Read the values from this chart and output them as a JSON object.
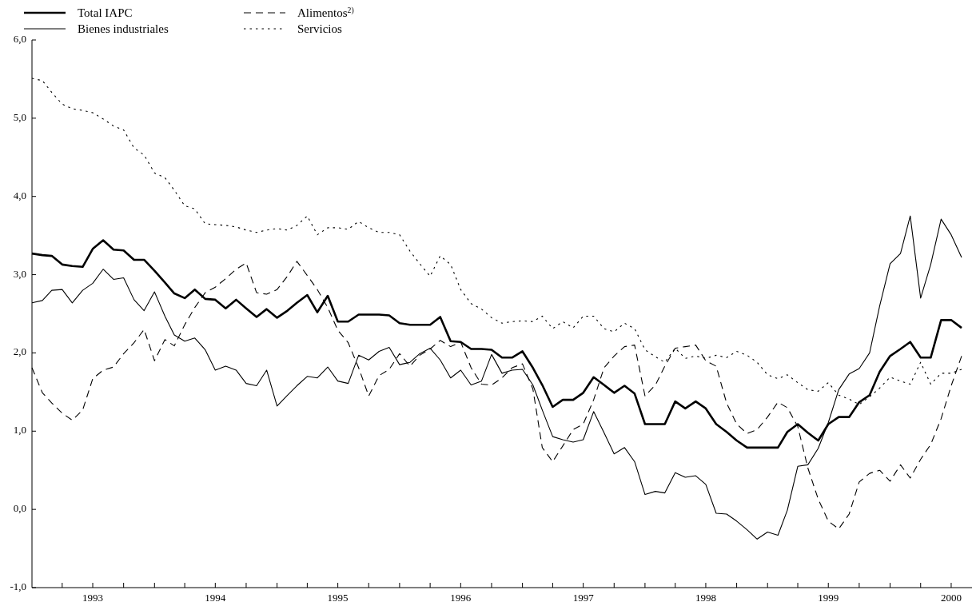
{
  "chart_data": {
    "type": "line",
    "x": [
      "1993-01",
      "1993-02",
      "1993-03",
      "1993-04",
      "1993-05",
      "1993-06",
      "1993-07",
      "1993-08",
      "1993-09",
      "1993-10",
      "1993-11",
      "1993-12",
      "1994-01",
      "1994-02",
      "1994-03",
      "1994-04",
      "1994-05",
      "1994-06",
      "1994-07",
      "1994-08",
      "1994-09",
      "1994-10",
      "1994-11",
      "1994-12",
      "1995-01",
      "1995-02",
      "1995-03",
      "1995-04",
      "1995-05",
      "1995-06",
      "1995-07",
      "1995-08",
      "1995-09",
      "1995-10",
      "1995-11",
      "1995-12",
      "1996-01",
      "1996-02",
      "1996-03",
      "1996-04",
      "1996-05",
      "1996-06",
      "1996-07",
      "1996-08",
      "1996-09",
      "1996-10",
      "1996-11",
      "1996-12",
      "1997-01",
      "1997-02",
      "1997-03",
      "1997-04",
      "1997-05",
      "1997-06",
      "1997-07",
      "1997-08",
      "1997-09",
      "1997-10",
      "1997-11",
      "1997-12",
      "1998-01",
      "1998-02",
      "1998-03",
      "1998-04",
      "1998-05",
      "1998-06",
      "1998-07",
      "1998-08",
      "1998-09",
      "1998-10",
      "1998-11",
      "1998-12",
      "1999-01",
      "1999-02",
      "1999-03",
      "1999-04",
      "1999-05",
      "1999-06",
      "1999-07",
      "1999-08",
      "1999-09",
      "1999-10",
      "1999-11",
      "1999-12",
      "2000-01",
      "2000-02",
      "2000-03",
      "2000-04",
      "2000-05",
      "2000-06",
      "2000-07",
      "2000-08"
    ],
    "series": [
      {
        "name": "Total IAPC",
        "color": "#000000",
        "line_style": "solid",
        "values": [
          3.27,
          3.25,
          3.24,
          3.13,
          3.11,
          3.1,
          3.33,
          3.44,
          3.32,
          3.31,
          3.19,
          3.19,
          3.05,
          2.9,
          2.76,
          2.7,
          2.81,
          2.69,
          2.68,
          2.57,
          2.68,
          2.57,
          2.46,
          2.56,
          2.45,
          2.54,
          2.64,
          2.74,
          2.52,
          2.73,
          2.4,
          2.4,
          2.49,
          2.49,
          2.49,
          2.48,
          2.38,
          2.36,
          2.36,
          2.36,
          2.46,
          2.15,
          2.14,
          2.05,
          2.05,
          2.04,
          1.94,
          1.94,
          2.02,
          1.81,
          1.59,
          1.31,
          1.4,
          1.4,
          1.49,
          1.69,
          1.59,
          1.49,
          1.58,
          1.48,
          1.09,
          1.09,
          1.09,
          1.38,
          1.29,
          1.38,
          1.29,
          1.09,
          0.99,
          0.88,
          0.79,
          0.79,
          0.79,
          0.79,
          0.99,
          1.09,
          0.98,
          0.88,
          1.09,
          1.18,
          1.18,
          1.37,
          1.46,
          1.76,
          1.96,
          2.05,
          2.14,
          1.94,
          1.94,
          2.42,
          2.42,
          2.32
        ]
      },
      {
        "name": "Bienes industriales",
        "color": "#000000",
        "line_style": "solid",
        "values": [
          2.64,
          2.67,
          2.8,
          2.81,
          2.64,
          2.8,
          2.89,
          3.07,
          2.94,
          2.96,
          2.68,
          2.54,
          2.78,
          2.47,
          2.23,
          2.15,
          2.19,
          2.04,
          1.78,
          1.83,
          1.78,
          1.61,
          1.58,
          1.78,
          1.32,
          1.46,
          1.58,
          1.7,
          1.68,
          1.82,
          1.64,
          1.61,
          1.97,
          1.91,
          2.02,
          2.07,
          1.85,
          1.88,
          1.99,
          2.06,
          1.91,
          1.68,
          1.78,
          1.59,
          1.64,
          1.98,
          1.74,
          1.78,
          1.79,
          1.59,
          1.27,
          0.93,
          0.89,
          0.86,
          0.89,
          1.25,
          0.98,
          0.71,
          0.79,
          0.61,
          0.19,
          0.23,
          0.21,
          0.47,
          0.41,
          0.43,
          0.32,
          -0.05,
          -0.06,
          -0.15,
          -0.26,
          -0.38,
          -0.29,
          -0.33,
          -0.01,
          0.55,
          0.57,
          0.78,
          1.11,
          1.53,
          1.73,
          1.8,
          2.0,
          2.6,
          3.14,
          3.27,
          3.75,
          2.7,
          3.13,
          3.71,
          3.51,
          3.22
        ]
      },
      {
        "name": "Alimentos$^{2)}$",
        "color": "#000000",
        "line_style": "dashed",
        "values": [
          1.81,
          1.49,
          1.36,
          1.23,
          1.14,
          1.27,
          1.67,
          1.78,
          1.82,
          1.99,
          2.13,
          2.3,
          1.9,
          2.17,
          2.09,
          2.36,
          2.58,
          2.77,
          2.84,
          2.95,
          3.07,
          3.15,
          2.77,
          2.75,
          2.81,
          2.98,
          3.17,
          2.99,
          2.81,
          2.58,
          2.29,
          2.13,
          1.81,
          1.45,
          1.71,
          1.79,
          1.99,
          1.83,
          1.97,
          2.05,
          2.16,
          2.08,
          2.14,
          1.81,
          1.6,
          1.59,
          1.68,
          1.81,
          1.86,
          1.54,
          0.79,
          0.61,
          0.81,
          1.02,
          1.09,
          1.4,
          1.81,
          1.96,
          2.08,
          2.1,
          1.45,
          1.59,
          1.83,
          2.06,
          2.08,
          2.1,
          1.9,
          1.83,
          1.36,
          1.09,
          0.97,
          1.02,
          1.18,
          1.37,
          1.3,
          1.06,
          0.53,
          0.13,
          -0.15,
          -0.25,
          -0.06,
          0.35,
          0.46,
          0.5,
          0.36,
          0.57,
          0.4,
          0.64,
          0.83,
          1.16,
          1.58,
          1.96
        ]
      },
      {
        "name": "Servicios",
        "color": "#000000",
        "line_style": "dotted",
        "values": [
          5.51,
          5.48,
          5.33,
          5.18,
          5.12,
          5.1,
          5.07,
          4.99,
          4.9,
          4.85,
          4.62,
          4.53,
          4.3,
          4.24,
          4.08,
          3.88,
          3.84,
          3.65,
          3.64,
          3.63,
          3.61,
          3.57,
          3.54,
          3.57,
          3.59,
          3.57,
          3.63,
          3.75,
          3.51,
          3.6,
          3.6,
          3.58,
          3.68,
          3.6,
          3.54,
          3.54,
          3.51,
          3.3,
          3.14,
          2.98,
          3.24,
          3.13,
          2.81,
          2.63,
          2.56,
          2.45,
          2.38,
          2.4,
          2.41,
          2.4,
          2.47,
          2.31,
          2.4,
          2.32,
          2.47,
          2.47,
          2.31,
          2.27,
          2.38,
          2.31,
          2.04,
          1.95,
          1.88,
          2.06,
          1.93,
          1.96,
          1.93,
          1.97,
          1.94,
          2.02,
          1.97,
          1.88,
          1.72,
          1.67,
          1.72,
          1.62,
          1.53,
          1.51,
          1.62,
          1.46,
          1.41,
          1.34,
          1.44,
          1.55,
          1.69,
          1.64,
          1.6,
          1.88,
          1.6,
          1.74,
          1.74,
          1.79
        ]
      }
    ],
    "xlim": [
      "1993-01",
      "2000-09"
    ],
    "xticks": [
      {
        "value": "1993-04",
        "label": null
      },
      {
        "value": "1993-07",
        "label": "1993"
      },
      {
        "value": "1993-10",
        "label": null
      },
      {
        "value": "1994-01",
        "label": null
      },
      {
        "value": "1994-04",
        "label": null
      },
      {
        "value": "1994-07",
        "label": "1994"
      },
      {
        "value": "1994-10",
        "label": null
      },
      {
        "value": "1995-01",
        "label": null
      },
      {
        "value": "1995-04",
        "label": null
      },
      {
        "value": "1995-07",
        "label": "1995"
      },
      {
        "value": "1995-10",
        "label": null
      },
      {
        "value": "1996-01",
        "label": null
      },
      {
        "value": "1996-04",
        "label": null
      },
      {
        "value": "1996-07",
        "label": "1996"
      },
      {
        "value": "1996-10",
        "label": null
      },
      {
        "value": "1997-01",
        "label": null
      },
      {
        "value": "1997-04",
        "label": null
      },
      {
        "value": "1997-07",
        "label": "1997"
      },
      {
        "value": "1997-10",
        "label": null
      },
      {
        "value": "1998-01",
        "label": null
      },
      {
        "value": "1998-04",
        "label": null
      },
      {
        "value": "1998-07",
        "label": "1998"
      },
      {
        "value": "1998-10",
        "label": null
      },
      {
        "value": "1999-01",
        "label": null
      },
      {
        "value": "1999-04",
        "label": null
      },
      {
        "value": "1999-07",
        "label": "1999"
      },
      {
        "value": "1999-10",
        "label": null
      },
      {
        "value": "2000-01",
        "label": null
      },
      {
        "value": "2000-04",
        "label": null
      },
      {
        "value": "2000-07",
        "label": "2000"
      }
    ],
    "ylim": [
      -1,
      6
    ],
    "yticks": [
      {
        "value": -1,
        "label": "-1,0"
      },
      {
        "value": 0,
        "label": "0,0"
      },
      {
        "value": 1,
        "label": "1,0"
      },
      {
        "value": 2,
        "label": "2,0"
      },
      {
        "value": 3,
        "label": "3,0"
      },
      {
        "value": 4,
        "label": "4,0"
      },
      {
        "value": 5,
        "label": "5,0"
      },
      {
        "value": 6,
        "label": "6,0"
      }
    ],
    "legend": "top left",
    "marker": "none"
  }
}
